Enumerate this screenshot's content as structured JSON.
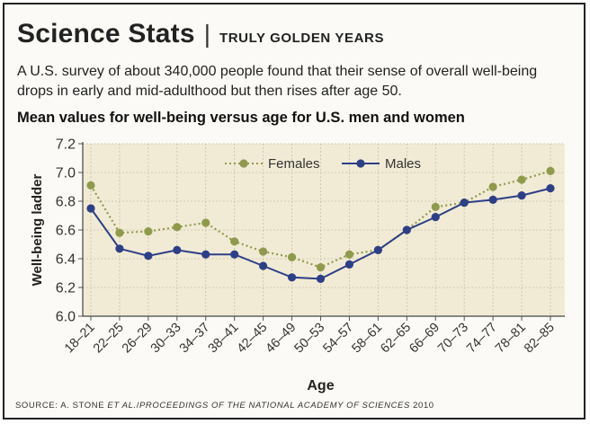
{
  "header": {
    "title": "Science Stats",
    "separator": "|",
    "subtitle": "TRULY GOLDEN YEARS"
  },
  "lede": "A U.S. survey of about 340,000 people found that their sense of overall well-being drops in early and mid-adulthood but then rises after age 50.",
  "source": {
    "prefix": "SOURCE: A. STONE ",
    "etal": "ET AL.",
    "mid": "/",
    "journal": "PROCEEDINGS OF THE NATIONAL ACADEMY OF SCIENCES",
    "year": " 2010"
  },
  "colors": {
    "plot_bg": "#f1ebd6",
    "grid": "#c9c0a4",
    "females": "#8f9a4c",
    "males": "#2d3f86"
  },
  "chart_data": {
    "type": "line",
    "title": "Mean values for well-being versus age for U.S. men and women",
    "xlabel": "Age",
    "ylabel": "Well-being ladder",
    "ylim": [
      6.0,
      7.2
    ],
    "yticks": [
      "6.0",
      "6.2",
      "6.4",
      "6.6",
      "6.8",
      "7.0",
      "7.2"
    ],
    "grid": true,
    "legend_position": "top-center",
    "categories": [
      "18–21",
      "22–25",
      "26–29",
      "30–33",
      "34–37",
      "38–41",
      "42–45",
      "46–49",
      "50–53",
      "54–57",
      "58–61",
      "62–65",
      "66–69",
      "70–73",
      "74–77",
      "78–81",
      "82–85"
    ],
    "series": [
      {
        "name": "Females",
        "style": "dotted",
        "values": [
          6.91,
          6.58,
          6.59,
          6.62,
          6.65,
          6.52,
          6.45,
          6.41,
          6.34,
          6.43,
          6.46,
          6.6,
          6.76,
          6.79,
          6.9,
          6.95,
          7.01
        ]
      },
      {
        "name": "Males",
        "style": "solid",
        "values": [
          6.75,
          6.47,
          6.42,
          6.46,
          6.43,
          6.43,
          6.35,
          6.27,
          6.26,
          6.36,
          6.46,
          6.6,
          6.69,
          6.79,
          6.81,
          6.84,
          6.89
        ]
      }
    ]
  }
}
